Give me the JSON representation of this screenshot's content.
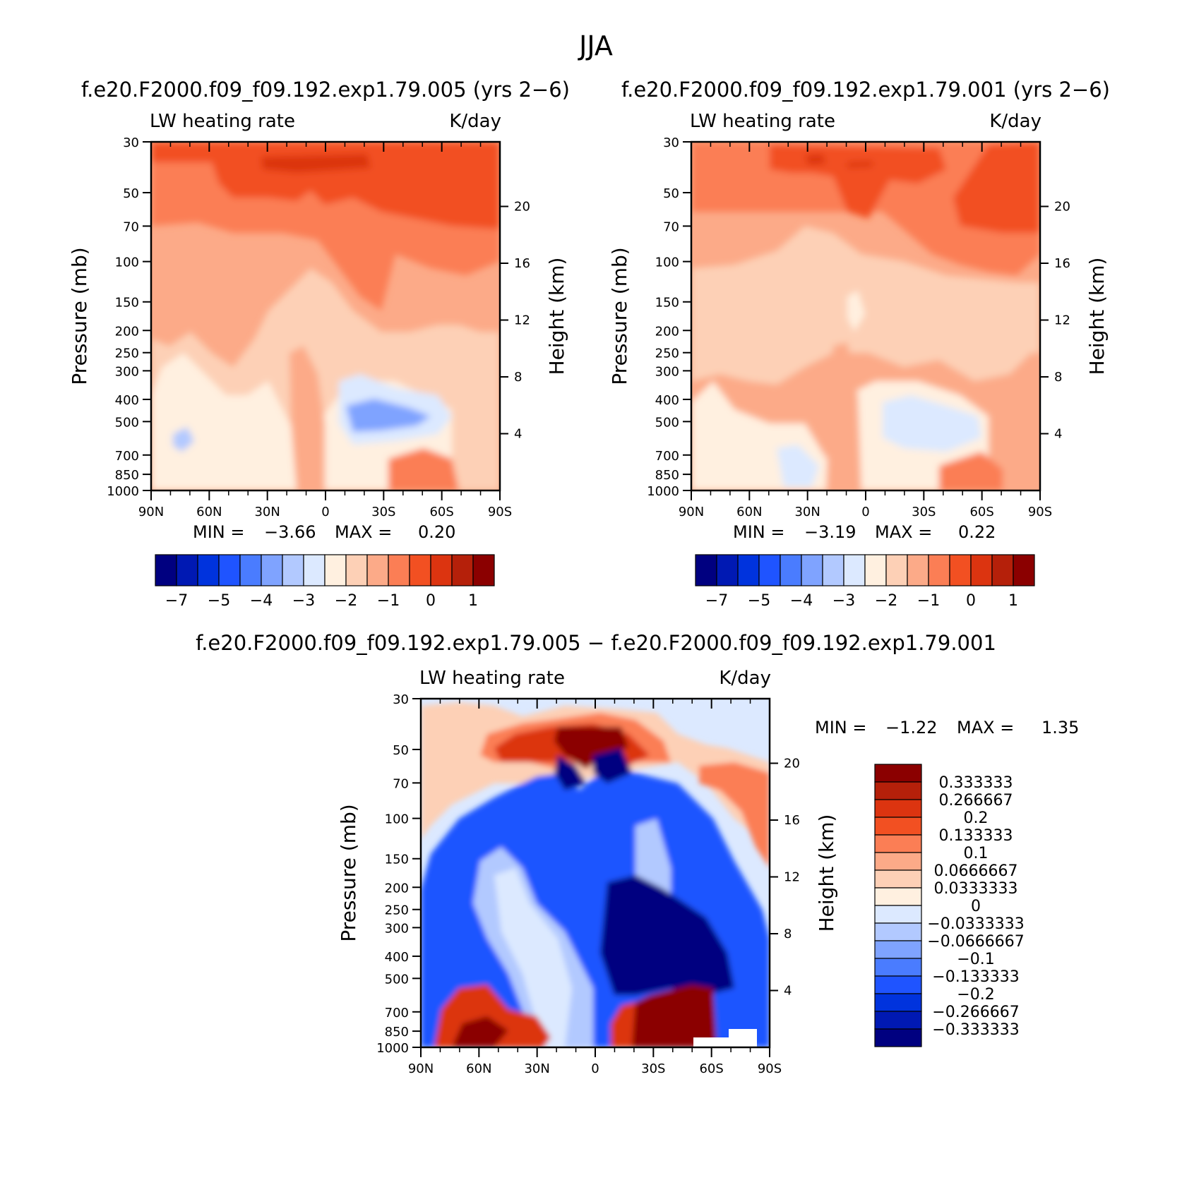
{
  "figure": {
    "season_title": "JJA"
  },
  "colors": {
    "cool": [
      "#000080",
      "#0019b3",
      "#0033dd",
      "#1f54ff",
      "#4a7cff",
      "#7fa3ff",
      "#b2c9ff",
      "#dce9ff"
    ],
    "warm": [
      "#fff0e0",
      "#fdd0b6",
      "#fcaa88",
      "#fb7e55",
      "#f25022",
      "#dc3410",
      "#b5200a",
      "#8b0000"
    ]
  },
  "chart_data": [
    {
      "id": "panel-1",
      "type": "contour",
      "case_title": "f.e20.F2000.f09_f09.192.exp1.79.005 (yrs 2−6)",
      "variable": "LW heating rate",
      "units": "K/day",
      "ylabel": "Pressure (mb)",
      "ylabel_right": "Height (km)",
      "pressure_ticks": [
        30,
        50,
        70,
        100,
        150,
        200,
        250,
        300,
        400,
        500,
        700,
        850,
        1000
      ],
      "height_ticks": [
        20,
        16,
        12,
        8,
        4
      ],
      "lat_ticks": [
        "90N",
        "60N",
        "30N",
        "0",
        "30S",
        "60S",
        "90S"
      ],
      "ylim": [
        30,
        1000
      ],
      "min_label": "MIN =",
      "min": "−3.66",
      "max_label": "MAX =",
      "max": "0.20",
      "colorbar_labels": [
        "−7",
        "−5",
        "−4",
        "−3",
        "−2",
        "−1",
        "0",
        "1"
      ]
    },
    {
      "id": "panel-2",
      "type": "contour",
      "case_title": "f.e20.F2000.f09_f09.192.exp1.79.001 (yrs 2−6)",
      "variable": "LW heating rate",
      "units": "K/day",
      "ylabel": "Pressure (mb)",
      "ylabel_right": "Height (km)",
      "pressure_ticks": [
        30,
        50,
        70,
        100,
        150,
        200,
        250,
        300,
        400,
        500,
        700,
        850,
        1000
      ],
      "height_ticks": [
        20,
        16,
        12,
        8,
        4
      ],
      "lat_ticks": [
        "90N",
        "60N",
        "30N",
        "0",
        "30S",
        "60S",
        "90S"
      ],
      "ylim": [
        30,
        1000
      ],
      "min_label": "MIN =",
      "min": "−3.19",
      "max_label": "MAX =",
      "max": "0.22",
      "colorbar_labels": [
        "−7",
        "−5",
        "−4",
        "−3",
        "−2",
        "−1",
        "0",
        "1"
      ]
    },
    {
      "id": "panel-diff",
      "type": "contour",
      "case_title": "f.e20.F2000.f09_f09.192.exp1.79.005 − f.e20.F2000.f09_f09.192.exp1.79.001",
      "variable": "LW heating rate",
      "units": "K/day",
      "ylabel": "Pressure (mb)",
      "ylabel_right": "Height (km)",
      "pressure_ticks": [
        30,
        50,
        70,
        100,
        150,
        200,
        250,
        300,
        400,
        500,
        700,
        850,
        1000
      ],
      "height_ticks": [
        20,
        16,
        12,
        8,
        4
      ],
      "lat_ticks": [
        "90N",
        "60N",
        "30N",
        "0",
        "30S",
        "60S",
        "90S"
      ],
      "ylim": [
        30,
        1000
      ],
      "min_label": "MIN =",
      "min": "−1.22",
      "max_label": "MAX =",
      "max": "1.35",
      "colorbar_labels": [
        "0.333333",
        "0.266667",
        "0.2",
        "0.133333",
        "0.1",
        "0.0666667",
        "0.0333333",
        "0",
        "−0.0333333",
        "−0.0666667",
        "−0.1",
        "−0.133333",
        "−0.2",
        "−0.266667",
        "−0.333333"
      ]
    }
  ]
}
